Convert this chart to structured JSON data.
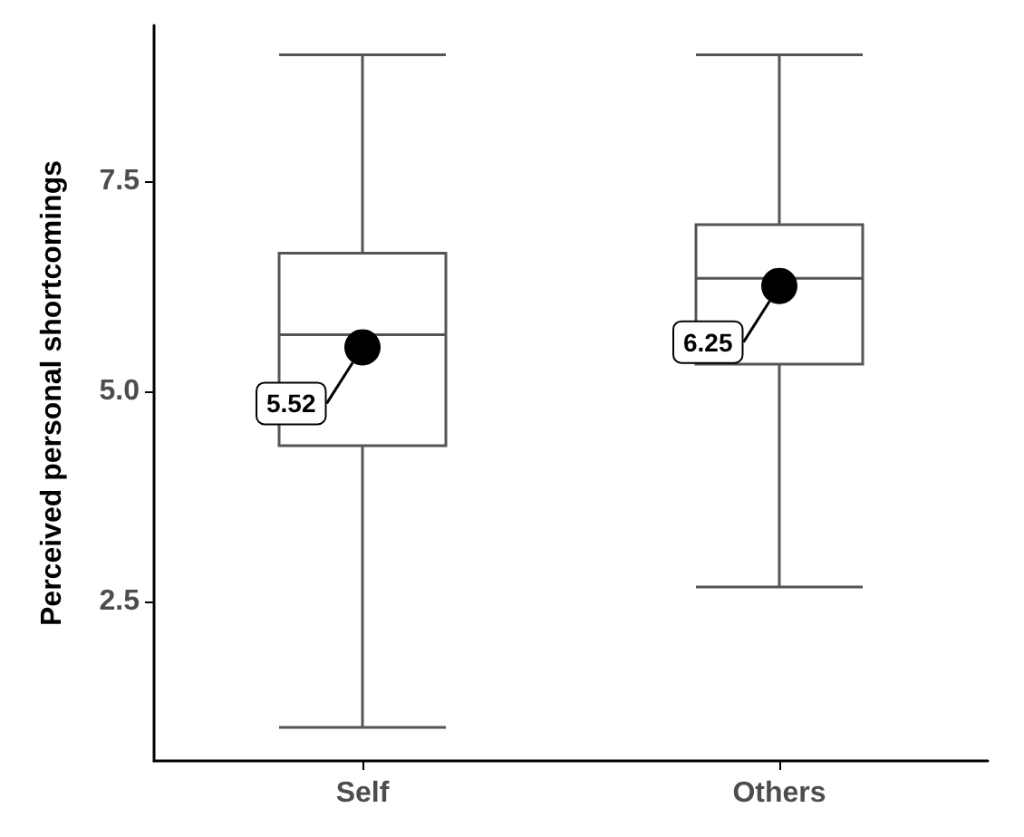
{
  "chart_data": {
    "type": "box",
    "ylabel": "Perceived personal shortcomings",
    "categories": [
      "Self",
      "Others"
    ],
    "ylim": [
      0.6,
      9.35
    ],
    "yticks": [
      2.5,
      {
        "value": 5,
        "label": "5.0"
      },
      7.5
    ],
    "grid": false,
    "data_labels": true,
    "marker": "circle",
    "series": [
      {
        "type": "box",
        "color": "#555555",
        "boxes": [
          {
            "low": 1.0,
            "q1": 4.35,
            "median": 5.67,
            "q3": 6.64,
            "high": 9.0
          },
          {
            "low": 2.67,
            "q1": 5.32,
            "median": 6.34,
            "q3": 6.98,
            "high": 9.0
          }
        ]
      },
      {
        "type": "scatter",
        "color": "#000000",
        "x": [
          "Self",
          "Others"
        ],
        "values": [
          5.52,
          6.25
        ]
      }
    ]
  }
}
